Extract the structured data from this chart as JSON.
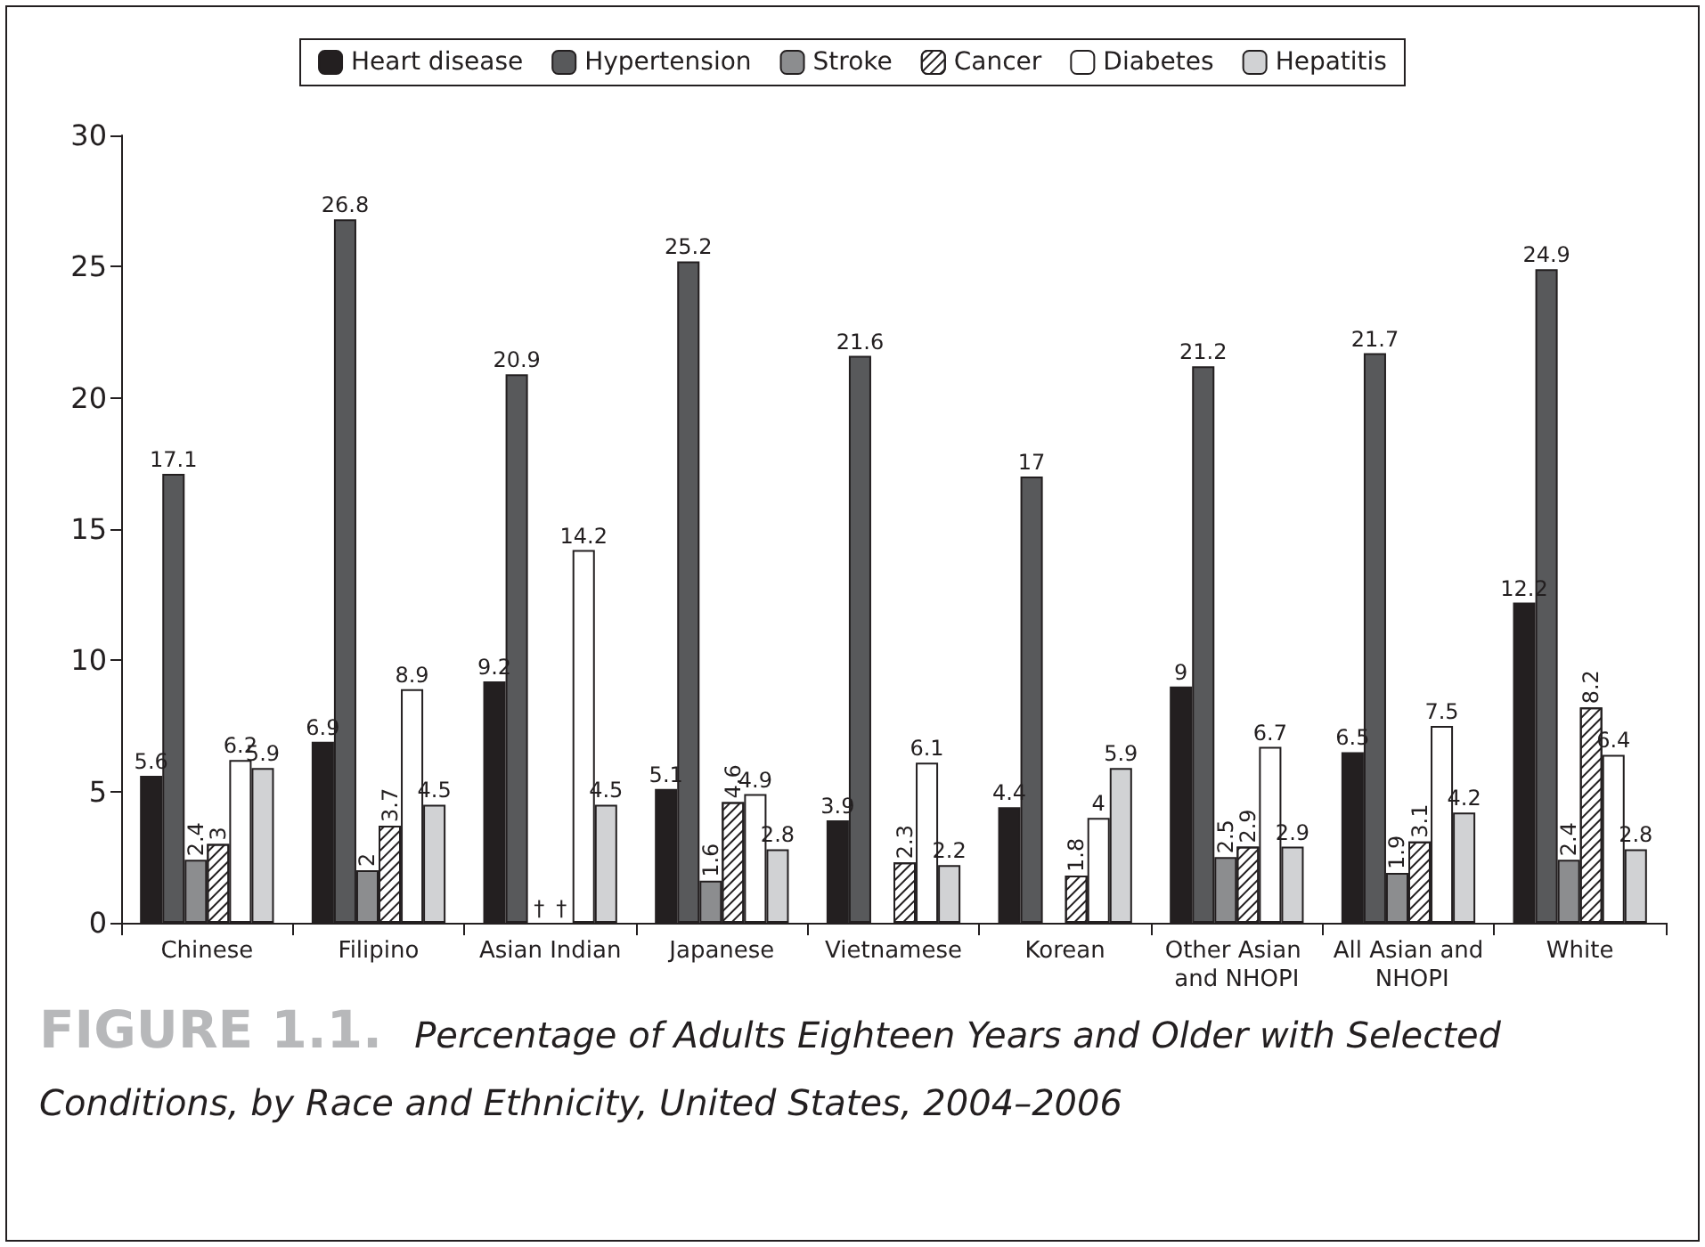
{
  "chart_data": {
    "type": "bar",
    "title": "FIGURE 1.1.",
    "subtitle": "Percentage of Adults Eighteen Years and Older with Selected Conditions, by Race and Ethnicity, United States, 2004–2006",
    "categories": [
      "Chinese",
      "Filipino",
      "Asian Indian",
      "Japanese",
      "Vietnamese",
      "Korean",
      "Other Asian and NHOPI",
      "All Asian and NHOPI",
      "White"
    ],
    "series": [
      {
        "name": "Heart disease",
        "color": "#231f20",
        "values": [
          5.6,
          6.9,
          9.2,
          5.1,
          3.9,
          4.4,
          9,
          6.5,
          12.2
        ],
        "value_labels": [
          "5.6",
          "6.9",
          "9.2",
          "5.1",
          "3.9",
          "4.4",
          "9",
          "6.5",
          "12.2"
        ]
      },
      {
        "name": "Hypertension",
        "color": "#58595b",
        "values": [
          17.1,
          26.8,
          20.9,
          25.2,
          21.6,
          17,
          21.2,
          21.7,
          24.9
        ],
        "value_labels": [
          "17.1",
          "26.8",
          "20.9",
          "25.2",
          "21.6",
          "17",
          "21.2",
          "21.7",
          "24.9"
        ]
      },
      {
        "name": "Stroke",
        "color": "#8c8d8f",
        "values": [
          2.4,
          2,
          null,
          1.6,
          null,
          null,
          2.5,
          1.9,
          2.4
        ],
        "value_labels": [
          "2.4",
          "2",
          "†",
          "1.6",
          null,
          null,
          "2.5",
          "1.9",
          "2.4"
        ]
      },
      {
        "name": "Cancer",
        "color": "#ffffff",
        "values": [
          3,
          3.7,
          null,
          4.6,
          2.3,
          1.8,
          2.9,
          3.1,
          8.2
        ],
        "value_labels": [
          "3",
          "3.7",
          "†",
          "4.6",
          "2.3",
          "1.8",
          "2.9",
          "3.1",
          "8.2"
        ]
      },
      {
        "name": "Diabetes",
        "color": "#ffffff",
        "values": [
          6.2,
          8.9,
          14.2,
          4.9,
          6.1,
          4,
          6.7,
          7.5,
          6.4
        ],
        "value_labels": [
          "6.2",
          "8.9",
          "14.2",
          "4.9",
          "6.1",
          "4",
          "6.7",
          "7.5",
          "6.4"
        ]
      },
      {
        "name": "Hepatitis",
        "color": "#d1d2d4",
        "values": [
          5.9,
          4.5,
          4.5,
          2.8,
          2.2,
          5.9,
          2.9,
          4.2,
          2.8
        ],
        "value_labels": [
          "5.9",
          "4.5",
          "4.5",
          "2.8",
          "2.2",
          "5.9",
          "2.9",
          "4.2",
          "2.8"
        ]
      }
    ],
    "ylim": [
      0,
      30
    ],
    "yticks": [
      0,
      5,
      10,
      15,
      20,
      25,
      30
    ],
    "grid": false,
    "legend": "top"
  }
}
